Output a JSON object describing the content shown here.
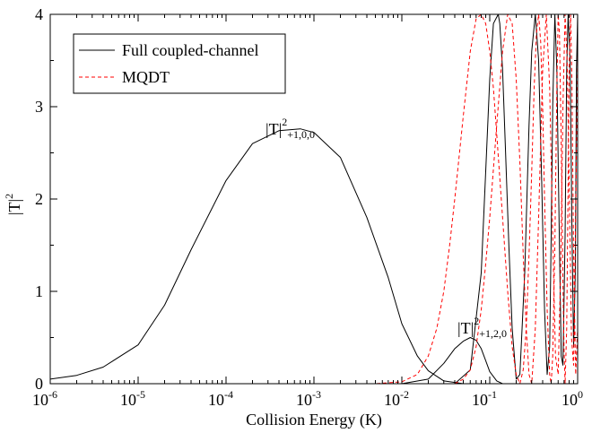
{
  "chart_data": {
    "type": "line",
    "title": "",
    "xlabel": "Collision Energy (K)",
    "ylabel": "|T|",
    "ylabel_sup": "2",
    "xscale": "log",
    "xlim": [
      1e-06,
      1
    ],
    "ylim": [
      0,
      4
    ],
    "x_ticks": [
      {
        "base": "10",
        "exp": "-6"
      },
      {
        "base": "10",
        "exp": "-5"
      },
      {
        "base": "10",
        "exp": "-4"
      },
      {
        "base": "10",
        "exp": "-3"
      },
      {
        "base": "10",
        "exp": "-2"
      },
      {
        "base": "10",
        "exp": "-1"
      },
      {
        "base": "10",
        "exp": "0"
      }
    ],
    "y_ticks": [
      "0",
      "1",
      "2",
      "3",
      "4"
    ],
    "grid": false,
    "legend": {
      "position": "top-left",
      "entries": [
        {
          "label": "Full coupled-channel",
          "color": "#000000",
          "dash": "solid"
        },
        {
          "label": "MQDT",
          "color": "#ff0000",
          "dash": "dashed"
        }
      ]
    },
    "annotations": [
      {
        "base": "|T|",
        "sup": "2",
        "sub": "+1,0,0"
      },
      {
        "base": "|T|",
        "sup": "2",
        "sub": "+1,2,0"
      }
    ],
    "series": [
      {
        "name": "Full coupled-channel",
        "color": "#000000",
        "dash": "solid",
        "components": [
          {
            "x": [
              1e-06,
              2e-06,
              4e-06,
              1e-05,
              2e-05,
              4e-05,
              0.0001,
              0.0002,
              0.0004,
              0.0007,
              0.001,
              0.002,
              0.004,
              0.007,
              0.01,
              0.015,
              0.02,
              0.03,
              0.05
            ],
            "y": [
              0.05,
              0.09,
              0.18,
              0.42,
              0.85,
              1.45,
              2.2,
              2.6,
              2.74,
              2.76,
              2.72,
              2.45,
              1.8,
              1.15,
              0.65,
              0.3,
              0.14,
              0.03,
              0.0
            ]
          },
          {
            "x": [
              0.01,
              0.02,
              0.03,
              0.04,
              0.05,
              0.06,
              0.07,
              0.08,
              0.09,
              0.1,
              0.12,
              0.14
            ],
            "y": [
              0.0,
              0.05,
              0.22,
              0.38,
              0.46,
              0.5,
              0.47,
              0.38,
              0.25,
              0.13,
              0.03,
              0.0
            ]
          },
          {
            "x": [
              0.04,
              0.06,
              0.08,
              0.09,
              0.1,
              0.11,
              0.12,
              0.125,
              0.13,
              0.14,
              0.15,
              0.165,
              0.18,
              0.2,
              0.22,
              0.25,
              0.28,
              0.3,
              0.33,
              0.36,
              0.39,
              0.42,
              0.45,
              0.48,
              0.5,
              0.52,
              0.55,
              0.58,
              0.62,
              0.65,
              0.68,
              0.72,
              0.75,
              0.78,
              0.82,
              0.86,
              0.9,
              0.94,
              0.97,
              1.0
            ],
            "y": [
              0.0,
              0.15,
              1.2,
              2.3,
              3.3,
              3.9,
              3.97,
              4.0,
              3.9,
              3.4,
              2.6,
              1.5,
              0.6,
              0.05,
              0.1,
              1.2,
              2.8,
              3.6,
              4.0,
              3.5,
              2.2,
              0.8,
              0.1,
              0.4,
              1.6,
              3.0,
              4.0,
              3.4,
              1.5,
              0.3,
              0.2,
              1.6,
              3.4,
              4.0,
              3.5,
              1.7,
              0.4,
              1.2,
              3.4,
              4.0
            ]
          }
        ]
      },
      {
        "name": "MQDT",
        "color": "#ff0000",
        "dash": "dashed",
        "components": [
          {
            "x": [
              1e-06,
              1e-05,
              0.0001,
              0.001,
              0.005,
              0.01,
              0.015,
              0.02,
              0.025,
              0.03,
              0.035,
              0.04,
              0.05,
              0.06,
              0.07,
              0.08,
              0.09,
              0.1,
              0.11,
              0.12,
              0.14,
              0.16,
              0.18,
              0.2,
              0.22,
              0.24,
              0.26,
              0.28,
              0.3,
              0.32,
              0.34,
              0.36,
              0.38,
              0.4,
              0.42,
              0.45,
              0.48,
              0.5,
              0.52,
              0.55,
              0.58,
              0.6,
              0.62,
              0.65,
              0.68,
              0.7,
              0.72,
              0.75,
              0.78,
              0.8,
              0.83,
              0.86,
              0.9,
              0.95,
              1.0
            ],
            "y": [
              0.0,
              0.0,
              0.0,
              0.0,
              0.0,
              0.02,
              0.1,
              0.3,
              0.6,
              1.0,
              1.5,
              2.0,
              2.9,
              3.6,
              3.95,
              4.0,
              3.9,
              3.6,
              3.2,
              2.7,
              1.8,
              1.0,
              0.4,
              0.1,
              0.0,
              0.15,
              0.6,
              1.4,
              2.3,
              3.2,
              3.8,
              4.0,
              3.7,
              3.0,
              2.0,
              0.8,
              0.1,
              0.0,
              0.3,
              1.5,
              3.2,
              4.0,
              3.8,
              2.6,
              1.1,
              0.4,
              0.0,
              0.6,
              2.2,
              3.4,
              4.0,
              3.3,
              1.4,
              0.1,
              0.6
            ]
          },
          {
            "x": [
              0.04,
              0.05,
              0.06,
              0.07,
              0.08,
              0.09,
              0.1,
              0.12,
              0.14,
              0.16,
              0.18,
              0.2,
              0.22,
              0.24,
              0.26,
              0.28,
              0.3,
              0.33,
              0.36,
              0.4,
              0.44,
              0.48,
              0.52,
              0.56,
              0.6,
              0.64,
              0.68,
              0.72,
              0.76,
              0.8,
              0.85,
              0.9,
              0.95,
              1.0
            ],
            "y": [
              0.0,
              0.05,
              0.15,
              0.4,
              0.8,
              1.3,
              1.8,
              2.8,
              3.6,
              4.0,
              3.9,
              3.3,
              2.4,
              1.4,
              0.6,
              0.1,
              0.0,
              0.6,
              1.8,
              3.4,
              4.0,
              3.2,
              1.6,
              0.3,
              0.1,
              1.2,
              3.0,
              4.0,
              3.5,
              2.2,
              0.5,
              0.2,
              1.8,
              3.6
            ]
          }
        ]
      }
    ]
  }
}
